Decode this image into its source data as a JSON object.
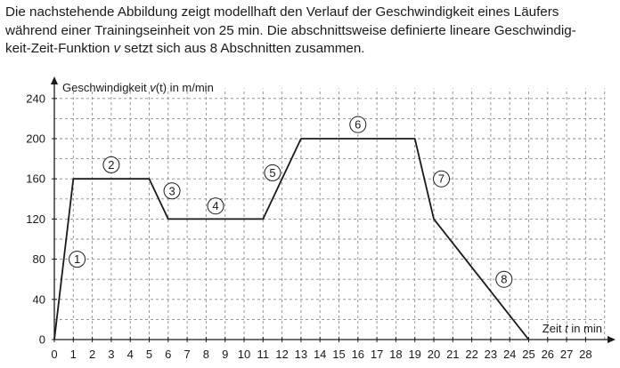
{
  "intro": {
    "line1": "Die nachstehende Abbildung zeigt modellhaft den Verlauf der Geschwindigkeit eines Läufers",
    "line2": "während einer Trainingseinheit von 25 min. Die abschnittsweise definierte lineare Geschwindig-",
    "line3_prefix": "keit-Zeit-Funktion ",
    "line3_var": "v",
    "line3_suffix": " setzt sich aus 8 Abschnitten zusammen."
  },
  "chart_data": {
    "type": "line",
    "ylabel_prefix": "Geschwindigkeit ",
    "ylabel_func": "v",
    "ylabel_arg": "(t)",
    "ylabel_unit": " in m/min",
    "xlabel_prefix": "Zeit ",
    "xlabel_var": "t",
    "xlabel_unit": " in min",
    "xlim": [
      0,
      29
    ],
    "ylim": [
      0,
      250
    ],
    "x_ticks": [
      "0",
      "1",
      "2",
      "3",
      "4",
      "5",
      "6",
      "7",
      "8",
      "9",
      "10",
      "11",
      "12",
      "13",
      "14",
      "15",
      "16",
      "17",
      "18",
      "19",
      "20",
      "21",
      "22",
      "23",
      "24",
      "25",
      "26",
      "27",
      "28"
    ],
    "y_ticks": [
      "0",
      "40",
      "80",
      "120",
      "160",
      "200",
      "240"
    ],
    "grid": true,
    "grid_style": "dashed",
    "points": [
      [
        0,
        0
      ],
      [
        1,
        160
      ],
      [
        5,
        160
      ],
      [
        6,
        120
      ],
      [
        11,
        120
      ],
      [
        13,
        200
      ],
      [
        19,
        200
      ],
      [
        20,
        120
      ],
      [
        25,
        0
      ]
    ],
    "segment_labels": [
      {
        "text": "1",
        "x": 1.2,
        "y": 80
      },
      {
        "text": "2",
        "x": 3.0,
        "y": 174
      },
      {
        "text": "3",
        "x": 6.2,
        "y": 148
      },
      {
        "text": "4",
        "x": 8.5,
        "y": 133
      },
      {
        "text": "5",
        "x": 11.5,
        "y": 166
      },
      {
        "text": "6",
        "x": 16.0,
        "y": 214
      },
      {
        "text": "7",
        "x": 20.4,
        "y": 160
      },
      {
        "text": "8",
        "x": 23.7,
        "y": 60
      }
    ]
  }
}
